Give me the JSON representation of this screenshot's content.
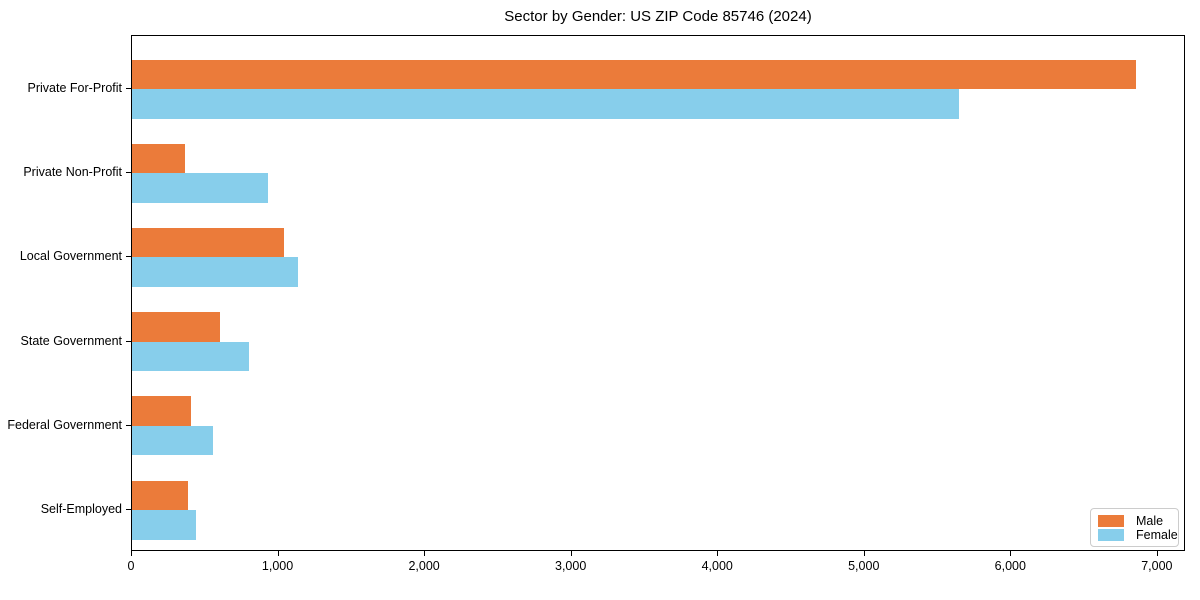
{
  "chart_data": {
    "type": "bar",
    "orientation": "horizontal",
    "title": "Sector by Gender: US ZIP Code 85746 (2024)",
    "categories": [
      "Private For-Profit",
      "Private Non-Profit",
      "Local Government",
      "State Government",
      "Federal Government",
      "Self-Employed"
    ],
    "series": [
      {
        "name": "Male",
        "color": "#EB7B3A",
        "values": [
          6850,
          360,
          1040,
          600,
          400,
          380
        ]
      },
      {
        "name": "Female",
        "color": "#87CEEB",
        "values": [
          5640,
          930,
          1130,
          800,
          550,
          440
        ]
      }
    ],
    "xlabel": "",
    "ylabel": "",
    "xlim": [
      0,
      7192
    ],
    "xticks": [
      0,
      1000,
      2000,
      3000,
      4000,
      5000,
      6000,
      7000
    ],
    "xtick_labels": [
      "0",
      "1,000",
      "2,000",
      "3,000",
      "4,000",
      "5,000",
      "6,000",
      "7,000"
    ],
    "grid": false,
    "legend": {
      "position": "lower right"
    },
    "colors": {
      "male": "#EB7B3A",
      "female": "#87CEEB",
      "axis": "#000000",
      "legend_border": "#cccccc"
    }
  }
}
